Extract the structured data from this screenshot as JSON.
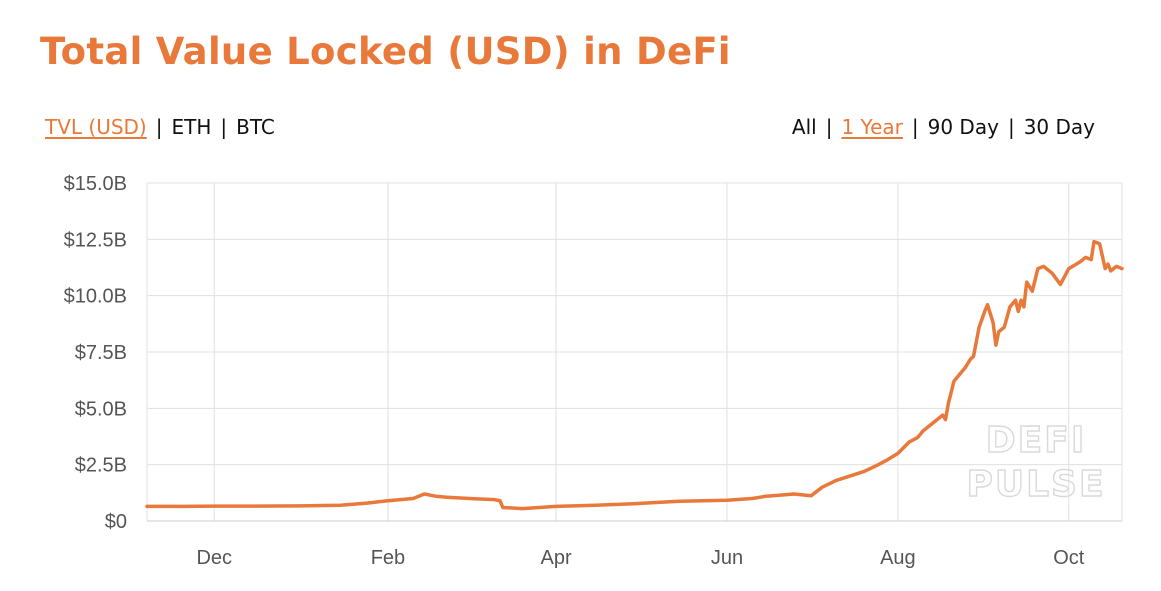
{
  "header": {
    "title": "Total Value Locked (USD) in DeFi"
  },
  "currency_toggle": [
    {
      "label": "TVL (USD)",
      "active": true
    },
    {
      "label": "ETH",
      "active": false
    },
    {
      "label": "BTC",
      "active": false
    }
  ],
  "range_toggle": [
    {
      "label": "All",
      "active": false
    },
    {
      "label": "1 Year",
      "active": true
    },
    {
      "label": "90 Day",
      "active": false
    },
    {
      "label": "30 Day",
      "active": false
    }
  ],
  "separator": "|",
  "watermark": {
    "line1": "DEFI",
    "line2": "PULSE"
  },
  "colors": {
    "accent": "#e8793a",
    "line": "#e8793a",
    "grid": "#e0e0e0",
    "tick_text": "#555555",
    "watermark": "#d9d9d9"
  },
  "chart_data": {
    "type": "line",
    "title": "Total Value Locked (USD) in DeFi",
    "xlabel": "",
    "ylabel": "",
    "y_unit": "billion USD",
    "ylim": [
      0,
      15
    ],
    "y_ticks": [
      0,
      2.5,
      5,
      7.5,
      10,
      12.5,
      15
    ],
    "y_tick_labels": [
      "$0",
      "$2.5B",
      "$5.0B",
      "$7.5B",
      "$10.0B",
      "$12.5B",
      "$15.0B"
    ],
    "x_tick_labels": [
      "Dec",
      "Feb",
      "Apr",
      "Jun",
      "Aug",
      "Oct"
    ],
    "xlim": [
      "2019-11-07",
      "2020-10-20"
    ],
    "x_ticks": [
      "2019-12-01",
      "2020-02-01",
      "2020-04-01",
      "2020-06-01",
      "2020-08-01",
      "2020-10-01"
    ],
    "grid": true,
    "legend": "none",
    "series": [
      {
        "x": [
          "2019-11-07",
          "2019-11-20",
          "2019-12-01",
          "2019-12-15",
          "2020-01-01",
          "2020-01-15",
          "2020-01-25",
          "2020-02-01",
          "2020-02-10",
          "2020-02-14",
          "2020-02-18",
          "2020-02-22",
          "2020-03-01",
          "2020-03-10",
          "2020-03-12",
          "2020-03-13",
          "2020-03-20",
          "2020-04-01",
          "2020-04-15",
          "2020-05-01",
          "2020-05-15",
          "2020-06-01",
          "2020-06-10",
          "2020-06-15",
          "2020-06-20",
          "2020-06-25",
          "2020-07-01",
          "2020-07-05",
          "2020-07-10",
          "2020-07-15",
          "2020-07-20",
          "2020-07-25",
          "2020-07-28",
          "2020-08-01",
          "2020-08-05",
          "2020-08-08",
          "2020-08-10",
          "2020-08-12",
          "2020-08-15",
          "2020-08-17",
          "2020-08-18",
          "2020-08-19",
          "2020-08-21",
          "2020-08-23",
          "2020-08-25",
          "2020-08-26",
          "2020-08-27",
          "2020-08-28",
          "2020-08-30",
          "2020-09-01",
          "2020-09-02",
          "2020-09-03",
          "2020-09-04",
          "2020-09-05",
          "2020-09-06",
          "2020-09-08",
          "2020-09-10",
          "2020-09-12",
          "2020-09-13",
          "2020-09-14",
          "2020-09-15",
          "2020-09-16",
          "2020-09-18",
          "2020-09-20",
          "2020-09-22",
          "2020-09-23",
          "2020-09-25",
          "2020-09-28",
          "2020-10-01",
          "2020-10-05",
          "2020-10-07",
          "2020-10-09",
          "2020-10-10",
          "2020-10-12",
          "2020-10-14",
          "2020-10-15",
          "2020-10-16",
          "2020-10-18",
          "2020-10-20"
        ],
        "values": [
          0.65,
          0.65,
          0.66,
          0.66,
          0.67,
          0.7,
          0.8,
          0.9,
          1.0,
          1.2,
          1.1,
          1.05,
          1.0,
          0.95,
          0.9,
          0.6,
          0.55,
          0.65,
          0.7,
          0.78,
          0.88,
          0.92,
          1.0,
          1.1,
          1.15,
          1.2,
          1.12,
          1.5,
          1.8,
          2.0,
          2.2,
          2.5,
          2.7,
          3.0,
          3.5,
          3.7,
          4.0,
          4.2,
          4.5,
          4.7,
          4.5,
          5.2,
          6.2,
          6.5,
          6.8,
          7.0,
          7.2,
          7.3,
          8.6,
          9.3,
          9.6,
          9.2,
          8.8,
          7.8,
          8.4,
          8.6,
          9.5,
          9.8,
          9.3,
          9.8,
          9.5,
          10.6,
          10.2,
          11.2,
          11.3,
          11.2,
          11.0,
          10.5,
          11.2,
          11.5,
          11.7,
          11.6,
          12.4,
          12.3,
          11.2,
          11.4,
          11.1,
          11.3,
          11.2
        ]
      }
    ]
  }
}
